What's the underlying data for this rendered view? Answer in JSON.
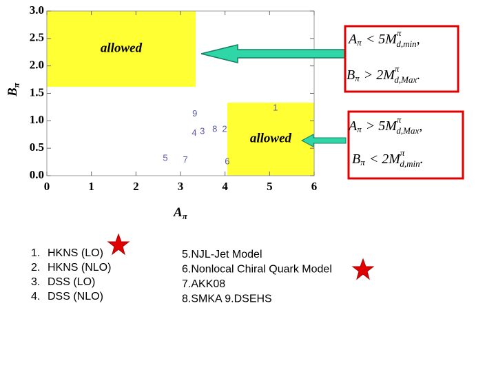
{
  "chart_data": {
    "type": "scatter",
    "x_label": "A",
    "x_label_sub": "π",
    "y_label": "B",
    "y_label_sub": "π",
    "xlim": [
      0,
      6
    ],
    "ylim": [
      0,
      3.0
    ],
    "xticks": [
      0,
      1,
      2,
      3,
      4,
      5,
      6
    ],
    "yticks": [
      {
        "value": 0,
        "label": "0.0"
      },
      {
        "value": 0.5,
        "label": "0.5"
      },
      {
        "value": 1,
        "label": "1.0"
      },
      {
        "value": 1.5,
        "label": "1.5"
      },
      {
        "value": 2,
        "label": "2.0"
      },
      {
        "value": 2.5,
        "label": "2.5"
      },
      {
        "value": 3,
        "label": "3.0"
      }
    ],
    "point_color": "#5a5aa8",
    "region_color": "#ffff33",
    "regions": [
      {
        "label": "allowed",
        "x": [
          0,
          3.34
        ],
        "y": [
          1.62,
          3.0
        ]
      },
      {
        "label": "allowed",
        "x": [
          4.05,
          6
        ],
        "y": [
          0,
          1.33
        ]
      }
    ],
    "points": [
      {
        "label": "1",
        "x": 5.13,
        "y": 1.23
      },
      {
        "label": "2",
        "x": 3.99,
        "y": 0.84
      },
      {
        "label": "3",
        "x": 3.49,
        "y": 0.8
      },
      {
        "label": "4",
        "x": 3.31,
        "y": 0.77
      },
      {
        "label": "5",
        "x": 2.66,
        "y": 0.31
      },
      {
        "label": "6",
        "x": 4.05,
        "y": 0.25
      },
      {
        "label": "7",
        "x": 3.11,
        "y": 0.28
      },
      {
        "label": "8",
        "x": 3.77,
        "y": 0.84
      },
      {
        "label": "9",
        "x": 3.32,
        "y": 1.12
      }
    ]
  },
  "conditions": [
    [
      {
        "lhs": "A",
        "lhs_sub": "π",
        "op": "< 5M",
        "sup": "π",
        "sub": "d,min",
        "end": ","
      },
      {
        "lhs": "B",
        "lhs_sub": "π",
        "op": "> 2M",
        "sup": "π",
        "sub": "d,Max",
        "end": "."
      }
    ],
    [
      {
        "lhs": "A",
        "lhs_sub": "π",
        "op": "> 5M",
        "sup": "π",
        "sub": "d,Max",
        "end": ","
      },
      {
        "lhs": "B",
        "lhs_sub": "π",
        "op": "< 2M",
        "sup": "π",
        "sub": "d,min",
        "end": "."
      }
    ]
  ],
  "list_left": [
    {
      "num": "1.",
      "text": "HKNS (LO)"
    },
    {
      "num": "2.",
      "text": "HKNS (NLO)"
    },
    {
      "num": "3.",
      "text": "DSS (LO)"
    },
    {
      "num": "4.",
      "text": "DSS (NLO)"
    }
  ],
  "list_right": [
    "5.NJL-Jet Model",
    "6.Nonlocal Chiral Quark Model",
    "7.AKK08",
    "8.SMKA    9.DSEHS"
  ]
}
